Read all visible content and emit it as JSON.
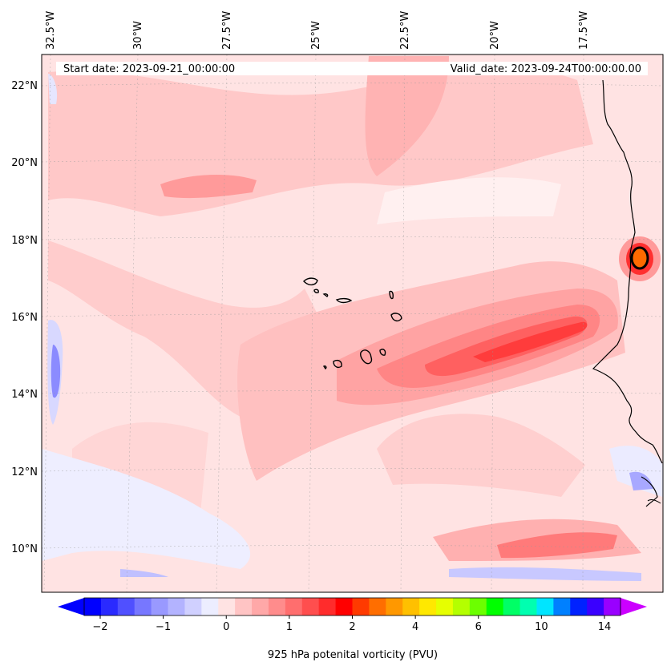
{
  "map": {
    "start_date": "Start date: 2023-09-21_00:00:00",
    "valid_date": "Valid_date: 2023-09-24T00:00:00.00",
    "lon_labels": [
      "32.5°W",
      "30°W",
      "27.5°W",
      "25°W",
      "22.5°W",
      "20°W",
      "17.5°W"
    ],
    "lat_labels": [
      "22°N",
      "20°N",
      "18°N",
      "16°N",
      "14°N",
      "12°N",
      "10°N"
    ],
    "coastline_color": "#000000",
    "background_field_color": "#ffe3e3"
  },
  "colorbar": {
    "label": "925 hPa potenital vorticity (PVU)",
    "tick_labels": [
      "−2",
      "−1",
      "0",
      "1",
      "2",
      "4",
      "6",
      "10",
      "14"
    ],
    "colors": [
      "#0000ff",
      "#2a2aff",
      "#5050ff",
      "#7777ff",
      "#9999ff",
      "#b3b3ff",
      "#d0d0ff",
      "#ecedff",
      "#ffe3e3",
      "#ffc4c4",
      "#ffa8a8",
      "#ff8c8c",
      "#ff6e6e",
      "#ff4e4e",
      "#ff2c2c",
      "#ff0000",
      "#ff3a00",
      "#ff6e00",
      "#ff9800",
      "#ffc000",
      "#ffe800",
      "#e6ff00",
      "#b4ff00",
      "#6cff00",
      "#00ff00",
      "#00ff66",
      "#00ffb0",
      "#00e5ff",
      "#0080ff",
      "#0022ff",
      "#3a00ff",
      "#9900ff"
    ],
    "under_color": "#0000ff",
    "over_color": "#cc00ff"
  }
}
